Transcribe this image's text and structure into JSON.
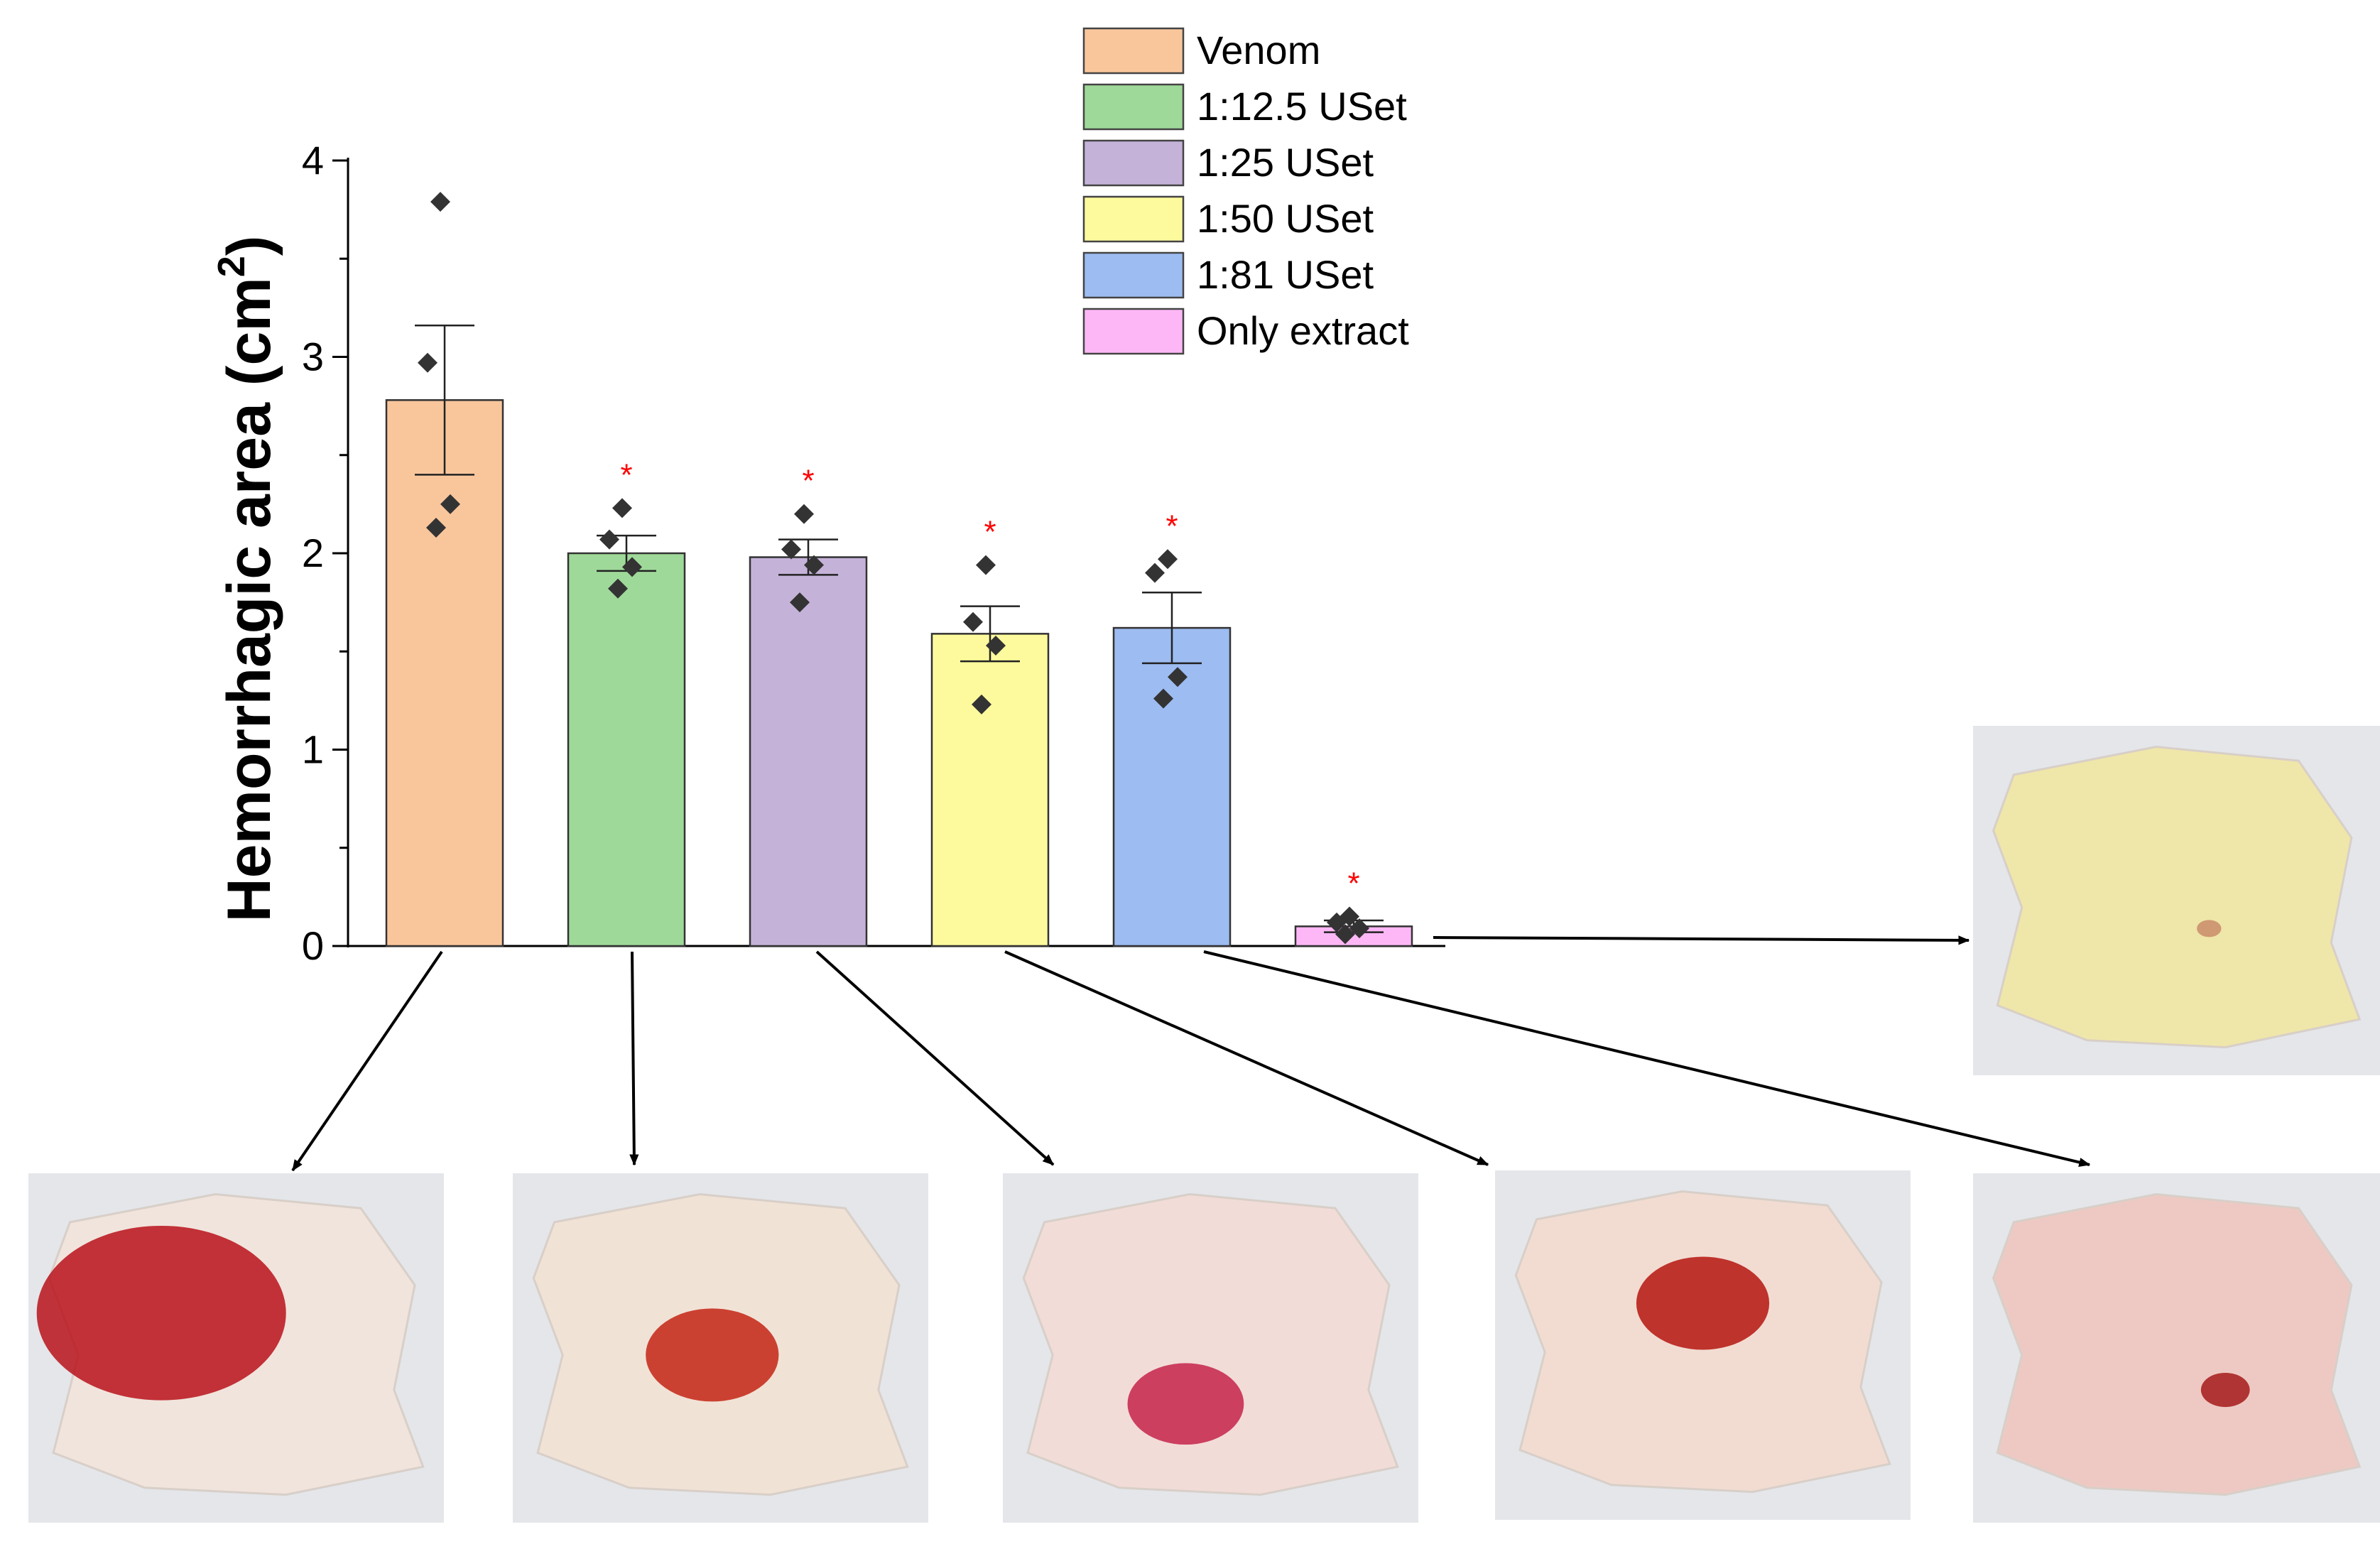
{
  "chart_data": {
    "type": "bar",
    "ylabel": "Hemorrhagic area (cm",
    "ylabel_sup": "2",
    "ylabel_close": ")",
    "ylim": [
      0,
      4
    ],
    "yticks": [
      "0",
      "1",
      "2",
      "3",
      "4"
    ],
    "grid": false,
    "legend_placement": "top-center",
    "categories": [
      "Venom",
      "1:12.5 USet",
      "1:25 USet",
      "1:50 USet",
      "1:81 USet",
      "Only extract"
    ],
    "values": [
      2.78,
      2.0,
      1.98,
      1.59,
      1.62,
      0.1
    ],
    "sem": [
      0.38,
      0.09,
      0.09,
      0.14,
      0.18,
      0.03
    ],
    "points": [
      [
        3.79,
        2.97,
        2.25,
        2.13
      ],
      [
        2.23,
        2.07,
        1.93,
        1.82
      ],
      [
        2.2,
        2.02,
        1.94,
        1.75
      ],
      [
        1.94,
        1.65,
        1.53,
        1.23
      ],
      [
        1.97,
        1.9,
        1.37,
        1.26
      ],
      [
        0.15,
        0.12,
        0.09,
        0.06
      ]
    ],
    "significance_marker": "*",
    "significant": [
      false,
      true,
      true,
      true,
      true,
      true
    ],
    "legend": [
      {
        "name": "Venom",
        "color": "#f9c69c"
      },
      {
        "name": "1:12.5 USet",
        "color": "#9fd99a"
      },
      {
        "name": "1:25 USet",
        "color": "#c5b2d9"
      },
      {
        "name": "1:50 USet",
        "color": "#fdfa9d"
      },
      {
        "name": "1:81 USet",
        "color": "#9dbcf1"
      },
      {
        "name": "Only extract",
        "color": "#fdb7f6"
      }
    ],
    "colors": {
      "point": "#333333",
      "marker": "#ff0000",
      "axis": "#000000"
    }
  },
  "photos": [
    {
      "name": "venom",
      "tissue": "#f1e4dd",
      "stain": "#b8121a"
    },
    {
      "name": "usat-12-5",
      "tissue": "#f1e2d6",
      "stain": "#c42414"
    },
    {
      "name": "usat-25",
      "tissue": "#f2dcd8",
      "stain": "#c5234a"
    },
    {
      "name": "usat-50",
      "tissue": "#f2dcd2",
      "stain": "#b5150f"
    },
    {
      "name": "usat-81",
      "tissue": "#eec9c3",
      "stain": "#a51a1a"
    },
    {
      "name": "only-extract",
      "tissue": "#efe6a9",
      "stain": "#c98b6a"
    }
  ]
}
